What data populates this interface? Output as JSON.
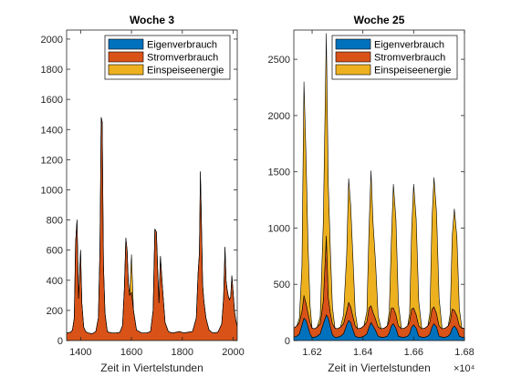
{
  "chart_data": [
    {
      "type": "area",
      "title": "Woche 3",
      "xlabel": "Zeit in Viertelstunden",
      "ylabel": "",
      "xlim": [
        1345,
        2016
      ],
      "ylim": [
        0,
        2060
      ],
      "xticks": [
        1400,
        1600,
        1800,
        2000
      ],
      "xtick_labels": [
        "1400",
        "1600",
        "1800",
        "2000"
      ],
      "yticks": [
        0,
        200,
        400,
        600,
        800,
        1000,
        1200,
        1400,
        1600,
        1800,
        2000
      ],
      "ytick_labels": [
        "0",
        "200",
        "400",
        "600",
        "800",
        "1000",
        "1200",
        "1400",
        "1600",
        "1800",
        "2000"
      ],
      "stacked": true,
      "legend_location": "top-right",
      "series_order": [
        "Eigenverbrauch",
        "Stromverbrauch",
        "Einspeiseenergie"
      ],
      "x": [
        1345,
        1360,
        1368,
        1375,
        1380,
        1386,
        1392,
        1400,
        1405,
        1412,
        1420,
        1430,
        1445,
        1460,
        1470,
        1476,
        1481,
        1485,
        1490,
        1496,
        1505,
        1520,
        1540,
        1555,
        1565,
        1572,
        1578,
        1583,
        1588,
        1593,
        1600,
        1608,
        1620,
        1640,
        1660,
        1675,
        1685,
        1692,
        1698,
        1703,
        1708,
        1714,
        1722,
        1732,
        1745,
        1760,
        1775,
        1790,
        1805,
        1820,
        1840,
        1855,
        1862,
        1867,
        1871,
        1875,
        1880,
        1885,
        1893,
        1905,
        1920,
        1940,
        1955,
        1962,
        1968,
        1972,
        1976,
        1980,
        1985,
        1990,
        1995,
        2000,
        2005,
        2010,
        2016
      ],
      "series": [
        {
          "name": "Eigenverbrauch",
          "color": "#0072BD",
          "values": [
            0,
            0,
            0,
            0,
            0,
            0,
            0,
            0,
            0,
            0,
            0,
            0,
            0,
            0,
            0,
            0,
            0,
            0,
            0,
            0,
            0,
            0,
            0,
            0,
            0,
            0,
            0,
            0,
            0,
            0,
            0,
            0,
            0,
            0,
            0,
            0,
            0,
            0,
            0,
            0,
            0,
            0,
            0,
            0,
            0,
            0,
            0,
            0,
            0,
            0,
            0,
            0,
            0,
            0,
            0,
            0,
            0,
            0,
            0,
            0,
            0,
            0,
            0,
            0,
            0,
            0,
            0,
            0,
            0,
            0,
            0,
            0,
            0,
            0,
            0
          ]
        },
        {
          "name": "Stromverbrauch",
          "color": "#D95319",
          "values": [
            50,
            55,
            70,
            150,
            650,
            800,
            280,
            600,
            250,
            90,
            60,
            50,
            45,
            60,
            150,
            600,
            1480,
            1450,
            500,
            180,
            60,
            50,
            50,
            55,
            100,
            350,
            680,
            600,
            380,
            300,
            320,
            200,
            70,
            50,
            50,
            60,
            200,
            740,
            720,
            480,
            250,
            560,
            350,
            120,
            60,
            50,
            55,
            60,
            50,
            55,
            60,
            150,
            450,
            580,
            1120,
            800,
            370,
            260,
            150,
            70,
            50,
            55,
            110,
            280,
            620,
            400,
            340,
            300,
            270,
            290,
            430,
            320,
            200,
            140,
            90
          ]
        },
        {
          "name": "Einspeiseenergie",
          "color": "#EDB120",
          "values": [
            0,
            0,
            0,
            0,
            0,
            0,
            0,
            0,
            0,
            0,
            0,
            0,
            0,
            0,
            0,
            0,
            0,
            0,
            0,
            0,
            0,
            0,
            0,
            0,
            0,
            0,
            0,
            0,
            0,
            0,
            250,
            0,
            0,
            0,
            0,
            0,
            0,
            0,
            0,
            0,
            0,
            0,
            0,
            0,
            0,
            0,
            0,
            0,
            0,
            0,
            0,
            0,
            0,
            0,
            0,
            0,
            0,
            0,
            0,
            0,
            0,
            0,
            0,
            0,
            0,
            0,
            0,
            0,
            0,
            0,
            0,
            0,
            0,
            0,
            0
          ]
        }
      ]
    },
    {
      "type": "area",
      "title": "Woche 25",
      "xlabel": "Zeit in Viertelstunden",
      "x_multiplier": "×10⁴",
      "ylabel": "",
      "xlim": [
        16128,
        16800
      ],
      "ylim": [
        0,
        2760
      ],
      "xticks": [
        16200,
        16400,
        16600,
        16800
      ],
      "xtick_labels": [
        "1.62",
        "1.64",
        "1.66",
        "1.68"
      ],
      "yticks": [
        0,
        500,
        1000,
        1500,
        2000,
        2500
      ],
      "ytick_labels": [
        "0",
        "500",
        "1000",
        "1500",
        "2000",
        "2500"
      ],
      "stacked": true,
      "legend_location": "top-right",
      "series_order": [
        "Eigenverbrauch",
        "Stromverbrauch",
        "Einspeiseenergie"
      ],
      "x": [
        16128,
        16140,
        16150,
        16160,
        16168,
        16176,
        16184,
        16192,
        16200,
        16210,
        16220,
        16232,
        16244,
        16256,
        16264,
        16272,
        16280,
        16290,
        16300,
        16312,
        16324,
        16336,
        16344,
        16352,
        16360,
        16370,
        16380,
        16392,
        16404,
        16416,
        16424,
        16432,
        16440,
        16450,
        16460,
        16472,
        16484,
        16496,
        16504,
        16512,
        16520,
        16530,
        16540,
        16552,
        16564,
        16576,
        16584,
        16592,
        16600,
        16610,
        16620,
        16632,
        16644,
        16656,
        16664,
        16672,
        16680,
        16690,
        16700,
        16712,
        16724,
        16736,
        16744,
        16752,
        16760,
        16770,
        16780,
        16790,
        16800
      ],
      "series": [
        {
          "name": "Eigenverbrauch",
          "color": "#0072BD",
          "values": [
            30,
            40,
            60,
            140,
            200,
            180,
            120,
            60,
            30,
            30,
            40,
            60,
            150,
            230,
            200,
            120,
            50,
            30,
            30,
            40,
            60,
            140,
            180,
            160,
            100,
            40,
            30,
            30,
            40,
            60,
            120,
            160,
            130,
            90,
            40,
            30,
            30,
            40,
            70,
            130,
            150,
            110,
            40,
            30,
            30,
            40,
            60,
            120,
            140,
            110,
            40,
            30,
            30,
            40,
            60,
            120,
            150,
            120,
            40,
            30,
            30,
            40,
            60,
            110,
            130,
            100,
            40,
            30,
            30
          ]
        },
        {
          "name": "Stromverbrauch",
          "color": "#D95319",
          "values": [
            80,
            90,
            100,
            120,
            200,
            150,
            120,
            100,
            80,
            75,
            80,
            90,
            200,
            700,
            180,
            120,
            100,
            80,
            75,
            80,
            90,
            120,
            160,
            140,
            120,
            90,
            75,
            80,
            90,
            110,
            170,
            150,
            120,
            100,
            80,
            75,
            80,
            90,
            110,
            160,
            140,
            120,
            90,
            75,
            80,
            90,
            110,
            160,
            150,
            120,
            90,
            75,
            80,
            90,
            110,
            160,
            150,
            120,
            90,
            75,
            80,
            90,
            110,
            170,
            140,
            120,
            90,
            80,
            80
          ]
        },
        {
          "name": "Einspeiseenergie",
          "color": "#EDB120",
          "values": [
            0,
            0,
            40,
            400,
            1900,
            1300,
            600,
            150,
            0,
            0,
            0,
            60,
            700,
            1800,
            1000,
            550,
            150,
            0,
            0,
            0,
            80,
            500,
            1100,
            900,
            550,
            120,
            0,
            0,
            0,
            90,
            700,
            1200,
            800,
            500,
            100,
            0,
            0,
            0,
            80,
            600,
            1100,
            850,
            200,
            0,
            0,
            0,
            70,
            700,
            1100,
            850,
            220,
            0,
            0,
            0,
            80,
            800,
            1150,
            900,
            250,
            0,
            0,
            0,
            70,
            650,
            900,
            700,
            150,
            0,
            0
          ]
        }
      ]
    }
  ]
}
